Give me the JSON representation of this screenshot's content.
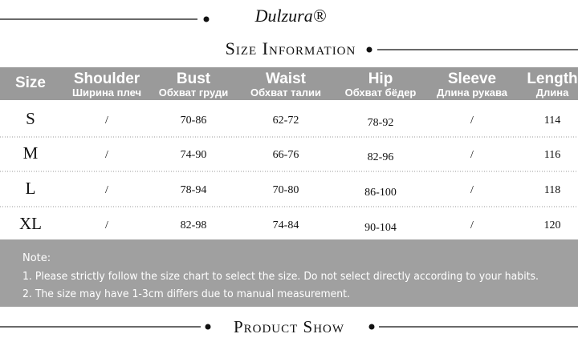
{
  "brand": "Dulzura®",
  "title": "Size Information",
  "table": {
    "header": [
      {
        "en": "Size"
      },
      {
        "en": "Shoulder",
        "ru": "Ширина плеч"
      },
      {
        "en": "Bust",
        "ru": "Обхват груди"
      },
      {
        "en": "Waist",
        "ru": "Обхват талии"
      },
      {
        "en": "Hip",
        "ru": "Обхват бёдер"
      },
      {
        "en": "Sleeve",
        "ru": "Длина рукава"
      },
      {
        "en": "Length",
        "ru": "Длина"
      }
    ],
    "rows": [
      [
        "S",
        "/",
        "70-86",
        "62-72",
        "78-92",
        "/",
        "114"
      ],
      [
        "M",
        "/",
        "74-90",
        "66-76",
        "82-96",
        "/",
        "116"
      ],
      [
        "L",
        "/",
        "78-94",
        "70-80",
        "86-100",
        "/",
        "118"
      ],
      [
        "XL",
        "/",
        "82-98",
        "74-84",
        "90-104",
        "/",
        "120"
      ]
    ]
  },
  "notes": {
    "label": "Note:",
    "items": [
      "1. Please strictly follow the size chart to select the size. Do not select directly according to your habits.",
      "2. The size may have 1-3cm differs due to manual measurement."
    ]
  },
  "footer": "Product Show"
}
